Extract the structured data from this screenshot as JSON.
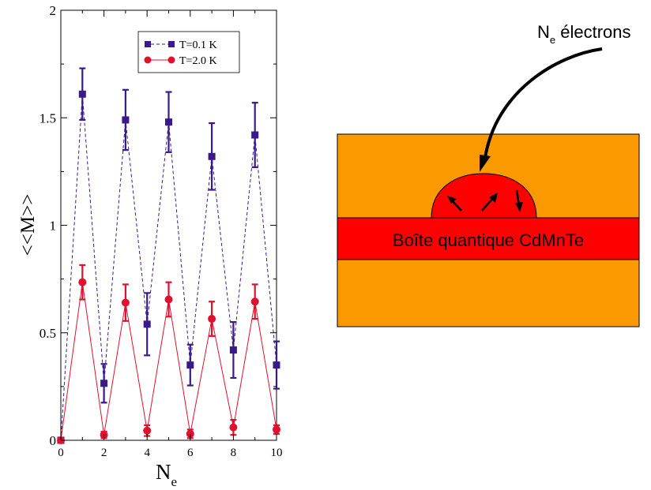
{
  "chart_data": {
    "type": "line",
    "xlabel": "N",
    "xlabel_sub": "e",
    "ylabel": "<<M>>",
    "xlim": [
      0,
      10
    ],
    "ylim": [
      0,
      2
    ],
    "xticks": [
      "0",
      "2",
      "4",
      "6",
      "8",
      "10"
    ],
    "yticks": [
      "0",
      "0.5",
      "1",
      "1.5",
      "2"
    ],
    "legend_position": "top-right",
    "x": [
      0,
      1,
      2,
      3,
      4,
      5,
      6,
      7,
      8,
      9,
      10
    ],
    "series": [
      {
        "name": "T=0.1 K",
        "color": "#3a1a8a",
        "marker": "square",
        "line": "dashed",
        "values": [
          0.0,
          1.61,
          0.265,
          1.49,
          0.54,
          1.48,
          0.35,
          1.32,
          0.42,
          1.42,
          0.35
        ],
        "errors": [
          0.0,
          0.12,
          0.09,
          0.14,
          0.145,
          0.14,
          0.095,
          0.155,
          0.13,
          0.15,
          0.11
        ]
      },
      {
        "name": "T=2.0 K",
        "color": "#e0102f",
        "marker": "circle",
        "line": "solid",
        "values": [
          0.0,
          0.735,
          0.025,
          0.64,
          0.045,
          0.655,
          0.03,
          0.565,
          0.06,
          0.645,
          0.05
        ],
        "errors": [
          0.0,
          0.08,
          0.015,
          0.085,
          0.025,
          0.08,
          0.02,
          0.08,
          0.035,
          0.08,
          0.02
        ]
      }
    ]
  },
  "diagram": {
    "label_main": "N",
    "label_sub": "e",
    "label_rest": " électrons",
    "dot_label": "Boîte quantique CdMnTe",
    "colors": {
      "substrate": "#fa9a00",
      "quantum_dot": "#ff0000",
      "outline": "#000000"
    }
  }
}
